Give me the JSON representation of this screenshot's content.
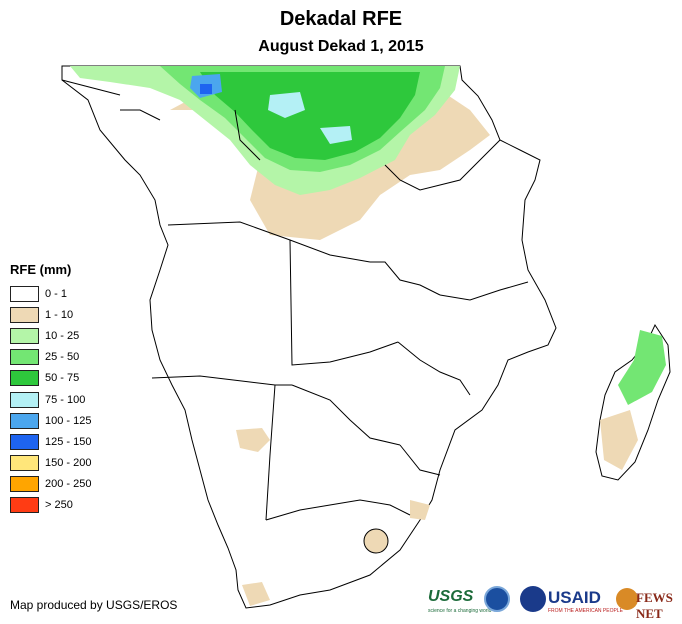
{
  "map": {
    "title": "Dekadal RFE",
    "subtitle": "August Dekad 1, 2015",
    "colors": {
      "land": "#ffffff",
      "border": "#000000",
      "class_1_10": "#eed9b5",
      "class_10_25": "#b4f5a8",
      "class_25_50": "#73e673",
      "class_50_75": "#2ec83c",
      "class_75_100": "#b4f0f5",
      "class_100_125": "#4ba6ee",
      "class_125_150": "#1e64f0"
    }
  },
  "legend": {
    "title": "RFE (mm)",
    "items": [
      {
        "label": "0 - 1",
        "color": "#ffffff"
      },
      {
        "label": "1 - 10",
        "color": "#eed9b5"
      },
      {
        "label": "10 - 25",
        "color": "#b4f5a8"
      },
      {
        "label": "25 - 50",
        "color": "#73e673"
      },
      {
        "label": "50 - 75",
        "color": "#2ec83c"
      },
      {
        "label": "75 - 100",
        "color": "#b4f0f5"
      },
      {
        "label": "100 - 125",
        "color": "#4ba6ee"
      },
      {
        "label": "125 - 150",
        "color": "#1e64f0"
      },
      {
        "label": "150 - 200",
        "color": "#ffe67a"
      },
      {
        "label": "200 - 250",
        "color": "#ffa500"
      },
      {
        "label": "> 250",
        "color": "#ff3c14"
      }
    ]
  },
  "footer": {
    "credit": "Map produced by USGS/EROS",
    "logos": {
      "usgs": "USGS",
      "usgs_tagline": "science for a changing world",
      "usaid": "USAID",
      "usaid_tagline": "FROM THE AMERICAN PEOPLE",
      "fews": "FEWS NET"
    }
  }
}
